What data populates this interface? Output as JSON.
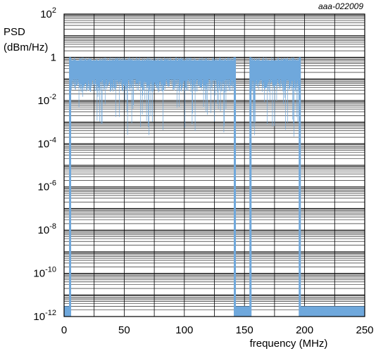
{
  "figure_id": "aaa-022009",
  "chart_data": {
    "type": "line",
    "title": "",
    "xlabel": "frequency (MHz)",
    "ylabel_line1": "PSD",
    "ylabel_line2": "(dBm/Hz)",
    "xlim": [
      0,
      250
    ],
    "ylim_log10": [
      -12,
      2
    ],
    "y_scale": "log",
    "grid": true,
    "x_ticks": [
      0,
      50,
      100,
      150,
      200,
      250
    ],
    "x_tick_labels": [
      "0",
      "50",
      "100",
      "150",
      "200",
      "250"
    ],
    "y_ticks_log10": [
      2,
      0,
      -2,
      -4,
      -6,
      -8,
      -10,
      -12
    ],
    "y_tick_labels": [
      {
        "base": "10",
        "exp": "2"
      },
      {
        "base": "1",
        "exp": ""
      },
      {
        "base": "10",
        "exp": "-2"
      },
      {
        "base": "10",
        "exp": "-4"
      },
      {
        "base": "10",
        "exp": "-6"
      },
      {
        "base": "10",
        "exp": "-8"
      },
      {
        "base": "10",
        "exp": "-10"
      },
      {
        "base": "10",
        "exp": "-12"
      }
    ],
    "series": [
      {
        "color": "#6fa8dc",
        "bands": [
          {
            "x_start": 0,
            "x_end": 5,
            "psd_top": 3e-12,
            "psd_floor": 1e-12
          },
          {
            "x_start": 5,
            "x_end": 142,
            "psd_top": 1.0,
            "psd_floor": 0.002
          },
          {
            "x_start": 142,
            "x_end": 155,
            "psd_top": 3e-12,
            "psd_floor": 1e-12
          },
          {
            "x_start": 155,
            "x_end": 196,
            "psd_top": 1.0,
            "psd_floor": 0.002
          },
          {
            "x_start": 196,
            "x_end": 250,
            "psd_top": 3e-12,
            "psd_floor": 1e-12
          }
        ]
      }
    ]
  }
}
